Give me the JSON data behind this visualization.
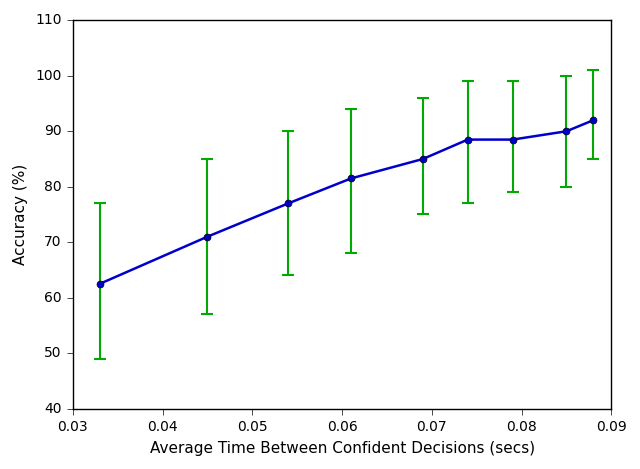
{
  "x": [
    0.033,
    0.045,
    0.054,
    0.061,
    0.069,
    0.074,
    0.079,
    0.085,
    0.088
  ],
  "y": [
    62.5,
    71.0,
    77.0,
    81.5,
    85.0,
    88.5,
    88.5,
    90.0,
    92.0
  ],
  "y_lower_err": [
    13.5,
    14.0,
    13.0,
    13.5,
    10.0,
    11.5,
    9.5,
    10.0,
    7.0
  ],
  "y_upper_err": [
    14.5,
    14.0,
    13.0,
    12.5,
    11.0,
    10.5,
    10.5,
    10.0,
    9.0
  ],
  "line_color": "#0000cc",
  "errorbar_color": "#00aa00",
  "marker": "o",
  "markersize": 5,
  "linewidth": 1.8,
  "xlabel": "Average Time Between Confident Decisions (secs)",
  "ylabel": "Accuracy (%)",
  "xlim": [
    0.03,
    0.09
  ],
  "ylim": [
    40,
    110
  ],
  "xticks": [
    0.03,
    0.04,
    0.05,
    0.06,
    0.07,
    0.08,
    0.09
  ],
  "yticks": [
    40,
    50,
    60,
    70,
    80,
    90,
    100,
    110
  ],
  "background_color": "#ffffff",
  "label_fontsize": 11,
  "tick_fontsize": 10
}
